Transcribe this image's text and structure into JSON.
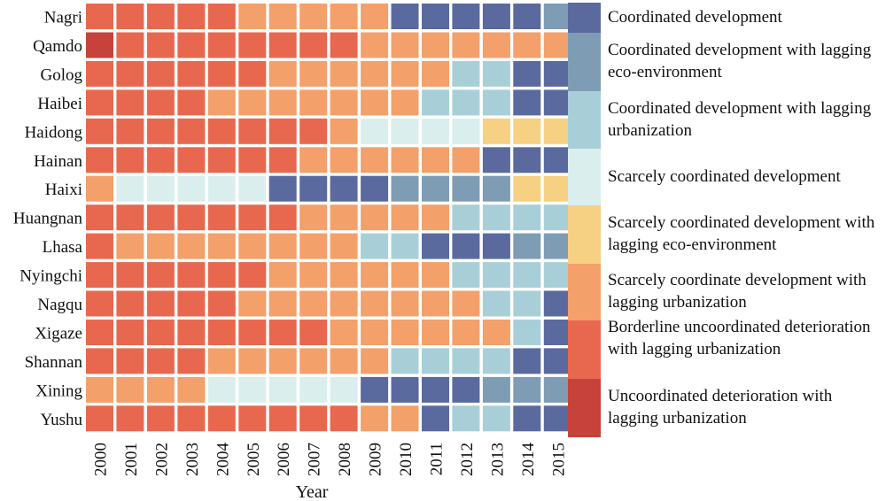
{
  "chart_data": {
    "type": "heatmap",
    "xlabel": "Year",
    "ylabel": "",
    "years": [
      "2000",
      "2001",
      "2002",
      "2003",
      "2004",
      "2005",
      "2006",
      "2007",
      "2008",
      "2009",
      "2010",
      "2011",
      "2012",
      "2013",
      "2014",
      "2015"
    ],
    "regions": [
      "Nagri",
      "Qamdo",
      "Golog",
      "Haibei",
      "Haidong",
      "Hainan",
      "Haixi",
      "Huangnan",
      "Lhasa",
      "Nyingchi",
      "Nagqu",
      "Xigaze",
      "Shannan",
      "Xining",
      "Yushu"
    ],
    "categories": [
      {
        "code": 1,
        "label": "Coordinated development",
        "color": "#5b6a9e"
      },
      {
        "code": 2,
        "label": "Coordinated development with lagging eco-environment",
        "color": "#7f9cb5"
      },
      {
        "code": 3,
        "label": "Coordinated development with lagging urbanization",
        "color": "#a8cfd7"
      },
      {
        "code": 4,
        "label": "Scarcely coordinated development",
        "color": "#daeeee"
      },
      {
        "code": 5,
        "label": "Scarcely coordinated development with lagging eco-environment",
        "color": "#f6d083"
      },
      {
        "code": 6,
        "label": "Scarcely coordinate development with lagging urbanization",
        "color": "#f3a06b"
      },
      {
        "code": 7,
        "label": "Borderline uncoordinated deterioration with lagging urbanization",
        "color": "#e8684f"
      },
      {
        "code": 8,
        "label": "Uncoordinated deterioration with lagging urbanization",
        "color": "#c6423a"
      }
    ],
    "values": [
      [
        7,
        7,
        7,
        7,
        7,
        6,
        6,
        6,
        6,
        6,
        1,
        1,
        1,
        1,
        1,
        2
      ],
      [
        8,
        7,
        7,
        7,
        7,
        7,
        7,
        7,
        7,
        6,
        6,
        6,
        6,
        6,
        6,
        6
      ],
      [
        7,
        7,
        7,
        7,
        7,
        7,
        6,
        6,
        6,
        6,
        6,
        6,
        3,
        3,
        1,
        1
      ],
      [
        7,
        7,
        7,
        7,
        6,
        6,
        6,
        6,
        6,
        6,
        6,
        3,
        3,
        3,
        1,
        1
      ],
      [
        7,
        7,
        7,
        7,
        7,
        7,
        7,
        7,
        6,
        4,
        4,
        4,
        4,
        5,
        5,
        5
      ],
      [
        7,
        7,
        7,
        7,
        7,
        7,
        7,
        6,
        6,
        6,
        6,
        6,
        6,
        1,
        1,
        1
      ],
      [
        6,
        4,
        4,
        4,
        4,
        4,
        1,
        1,
        1,
        1,
        2,
        2,
        2,
        2,
        5,
        5
      ],
      [
        7,
        7,
        7,
        7,
        7,
        7,
        7,
        6,
        6,
        6,
        6,
        6,
        3,
        3,
        3,
        3
      ],
      [
        7,
        6,
        6,
        6,
        6,
        6,
        6,
        6,
        6,
        3,
        3,
        1,
        1,
        1,
        2,
        2
      ],
      [
        7,
        7,
        7,
        7,
        7,
        7,
        6,
        6,
        6,
        6,
        6,
        6,
        3,
        3,
        3,
        3
      ],
      [
        7,
        7,
        7,
        7,
        7,
        6,
        6,
        6,
        6,
        6,
        6,
        6,
        6,
        3,
        3,
        1
      ],
      [
        7,
        7,
        7,
        7,
        7,
        7,
        7,
        7,
        6,
        6,
        6,
        6,
        6,
        6,
        3,
        1
      ],
      [
        7,
        7,
        7,
        7,
        6,
        6,
        6,
        6,
        6,
        6,
        3,
        3,
        3,
        3,
        1,
        1
      ],
      [
        6,
        6,
        6,
        6,
        4,
        4,
        4,
        4,
        4,
        1,
        1,
        1,
        1,
        2,
        2,
        2
      ],
      [
        7,
        7,
        7,
        7,
        7,
        7,
        7,
        7,
        7,
        6,
        6,
        1,
        3,
        3,
        1,
        1
      ]
    ],
    "legend": "right",
    "legend_order": [
      1,
      2,
      3,
      4,
      5,
      6,
      7,
      8
    ]
  }
}
